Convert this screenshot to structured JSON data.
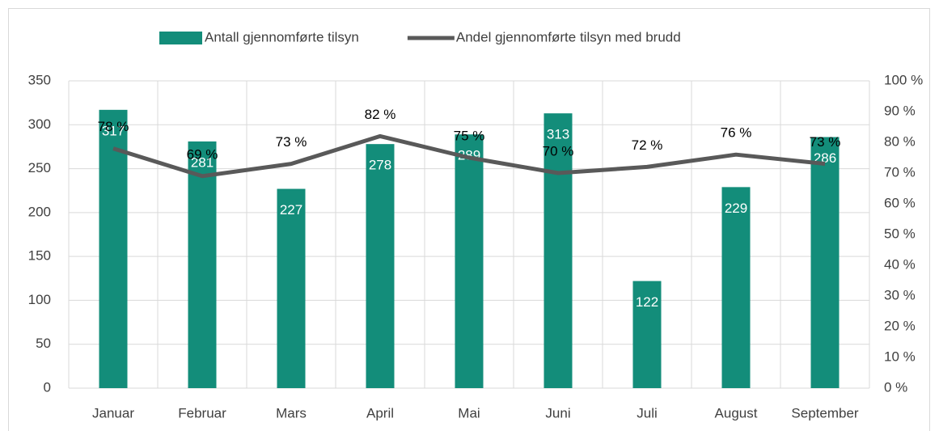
{
  "chart_data": {
    "type": "bar",
    "categories": [
      "Januar",
      "Februar",
      "Mars",
      "April",
      "Mai",
      "Juni",
      "Juli",
      "August",
      "September"
    ],
    "series": [
      {
        "name": "Antall gjennomførte tilsyn",
        "type": "bar",
        "color": "#138d7a",
        "values": [
          317,
          281,
          227,
          278,
          289,
          313,
          122,
          229,
          286
        ]
      },
      {
        "name": "Andel gjennomførte tilsyn med brudd",
        "type": "line",
        "axis": "y2",
        "color": "#595959",
        "values": [
          78,
          69,
          73,
          82,
          75,
          70,
          72,
          76,
          73
        ],
        "value_labels": [
          "78 %",
          "69 %",
          "73 %",
          "82 %",
          "75 %",
          "70 %",
          "72 %",
          "76 %",
          "73 %"
        ]
      }
    ],
    "ylim": [
      0,
      350
    ],
    "yticks": [
      0,
      50,
      100,
      150,
      200,
      250,
      300,
      350
    ],
    "y2lim": [
      0,
      100
    ],
    "y2ticks": [
      {
        "value": 0,
        "label": "0 %"
      },
      {
        "value": 10,
        "label": "10 %"
      },
      {
        "value": 20,
        "label": "20 %"
      },
      {
        "value": 30,
        "label": "30 %"
      },
      {
        "value": 40,
        "label": "40 %"
      },
      {
        "value": 50,
        "label": "50 %"
      },
      {
        "value": 60,
        "label": "60 %"
      },
      {
        "value": 70,
        "label": "70 %"
      },
      {
        "value": 80,
        "label": "80 %"
      },
      {
        "value": 90,
        "label": "90 %"
      },
      {
        "value": 100,
        "label": "100 %"
      }
    ],
    "grid": true,
    "legend": "top"
  }
}
